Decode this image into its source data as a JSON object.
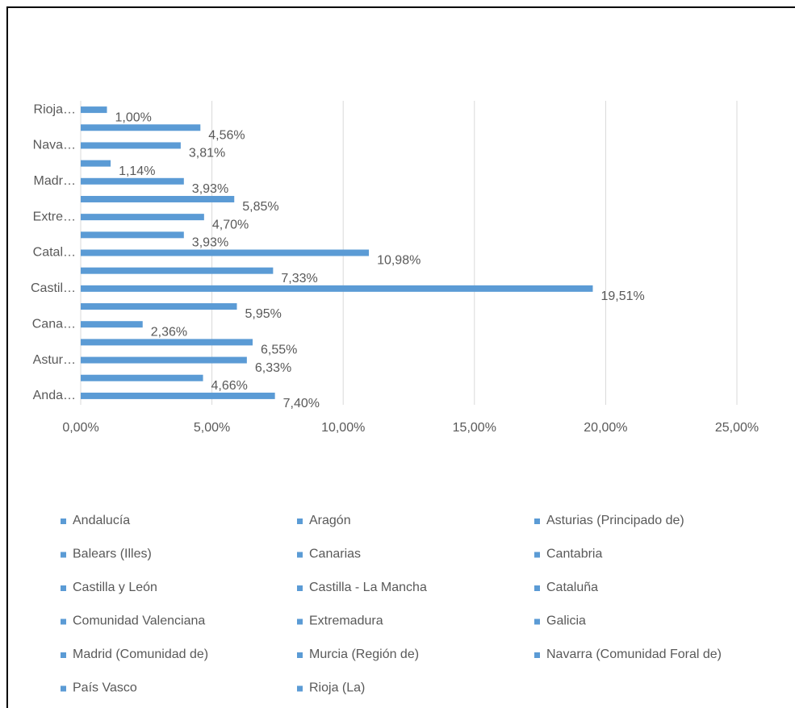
{
  "chart_data": {
    "type": "barh",
    "categories": [
      "Andalucía",
      "Aragón",
      "Asturias (Principado de)",
      "Balears (Illes)",
      "Canarias",
      "Cantabria",
      "Castilla y León",
      "Castilla - La Mancha",
      "Cataluña",
      "Comunidad Valenciana",
      "Extremadura",
      "Galicia",
      "Madrid (Comunidad de)",
      "Murcia (Región de)",
      "Navarra (Comunidad Foral de)",
      "País Vasco",
      "Rioja (La)"
    ],
    "category_axis_labels": [
      "Anda…",
      null,
      "Astur…",
      null,
      "Cana…",
      null,
      "Castil…",
      null,
      "Catal…",
      null,
      "Extre…",
      null,
      "Madr…",
      null,
      "Nava…",
      null,
      "Rioja…"
    ],
    "values": [
      7.4,
      4.66,
      6.33,
      6.55,
      2.36,
      5.95,
      19.51,
      7.33,
      10.98,
      3.93,
      4.7,
      5.85,
      3.93,
      1.14,
      3.81,
      4.56,
      1.0
    ],
    "value_labels": [
      "7,40%",
      "4,66%",
      "6,33%",
      "6,55%",
      "2,36%",
      "5,95%",
      "19,51%",
      "7,33%",
      "10,98%",
      "3,93%",
      "4,70%",
      "5,85%",
      "3,93%",
      "1,14%",
      "3,81%",
      "4,56%",
      "1,00%"
    ],
    "color": "#5b9bd5",
    "xlim": [
      0,
      25
    ],
    "xticks": [
      {
        "value": 0,
        "label": "0,00%"
      },
      {
        "value": 5,
        "label": "5,00%"
      },
      {
        "value": 10,
        "label": "10,00%"
      },
      {
        "value": 15,
        "label": "15,00%"
      },
      {
        "value": 20,
        "label": "20,00%"
      },
      {
        "value": 25,
        "label": "25,00%"
      }
    ],
    "grid": true,
    "legend": "bottom"
  }
}
